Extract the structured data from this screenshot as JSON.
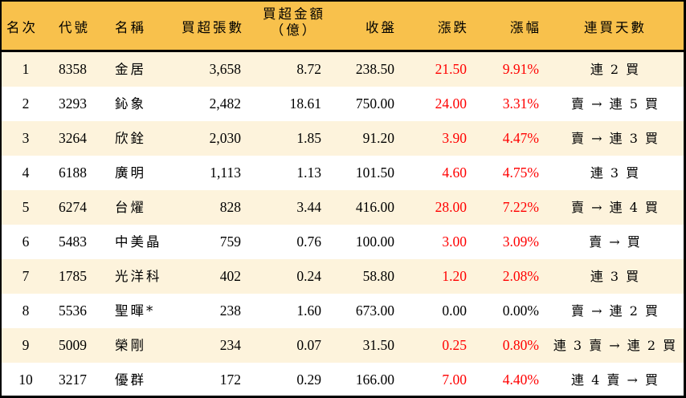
{
  "table": {
    "header": {
      "rank": "名次",
      "code": "代號",
      "name": "名稱",
      "net_buy_lots": "買超張數",
      "net_buy_amount_line1": "買超金額",
      "net_buy_amount_line2": "（億）",
      "close": "收盤",
      "change": "漲跌",
      "change_pct": "漲幅",
      "streak": "連買天數"
    },
    "colors": {
      "header_bg": "#F8C14C",
      "row_alt_bg": "#FDF3DC",
      "row_bg": "#FFFFFF",
      "up": "#FF0000",
      "flat": "#000000",
      "border": "#000000"
    },
    "rows": [
      {
        "rank": "1",
        "code": "8358",
        "name": "金居",
        "net_buy_lots": "3,658",
        "net_buy_amount": "8.72",
        "close": "238.50",
        "change": "21.50",
        "change_pct": "9.91%",
        "streak": "連 2 買",
        "up": true
      },
      {
        "rank": "2",
        "code": "3293",
        "name": "鈊象",
        "net_buy_lots": "2,482",
        "net_buy_amount": "18.61",
        "close": "750.00",
        "change": "24.00",
        "change_pct": "3.31%",
        "streak": "賣 → 連 5 買",
        "up": true
      },
      {
        "rank": "3",
        "code": "3264",
        "name": "欣銓",
        "net_buy_lots": "2,030",
        "net_buy_amount": "1.85",
        "close": "91.20",
        "change": "3.90",
        "change_pct": "4.47%",
        "streak": "賣 → 連 3 買",
        "up": true
      },
      {
        "rank": "4",
        "code": "6188",
        "name": "廣明",
        "net_buy_lots": "1,113",
        "net_buy_amount": "1.13",
        "close": "101.50",
        "change": "4.60",
        "change_pct": "4.75%",
        "streak": "連 3 買",
        "up": true
      },
      {
        "rank": "5",
        "code": "6274",
        "name": "台燿",
        "net_buy_lots": "828",
        "net_buy_amount": "3.44",
        "close": "416.00",
        "change": "28.00",
        "change_pct": "7.22%",
        "streak": "賣 → 連 4 買",
        "up": true
      },
      {
        "rank": "6",
        "code": "5483",
        "name": "中美晶",
        "net_buy_lots": "759",
        "net_buy_amount": "0.76",
        "close": "100.00",
        "change": "3.00",
        "change_pct": "3.09%",
        "streak": "賣 → 買",
        "up": true
      },
      {
        "rank": "7",
        "code": "1785",
        "name": "光洋科",
        "net_buy_lots": "402",
        "net_buy_amount": "0.24",
        "close": "58.80",
        "change": "1.20",
        "change_pct": "2.08%",
        "streak": "連 3 買",
        "up": true
      },
      {
        "rank": "8",
        "code": "5536",
        "name": "聖暉*",
        "net_buy_lots": "238",
        "net_buy_amount": "1.60",
        "close": "673.00",
        "change": "0.00",
        "change_pct": "0.00%",
        "streak": "賣 → 連 2 買",
        "up": false
      },
      {
        "rank": "9",
        "code": "5009",
        "name": "榮剛",
        "net_buy_lots": "234",
        "net_buy_amount": "0.07",
        "close": "31.50",
        "change": "0.25",
        "change_pct": "0.80%",
        "streak": "連 3 賣 → 連 2 買",
        "up": true
      },
      {
        "rank": "10",
        "code": "3217",
        "name": "優群",
        "net_buy_lots": "172",
        "net_buy_amount": "0.29",
        "close": "166.00",
        "change": "7.00",
        "change_pct": "4.40%",
        "streak": "連 4 賣 → 買",
        "up": true
      }
    ]
  }
}
